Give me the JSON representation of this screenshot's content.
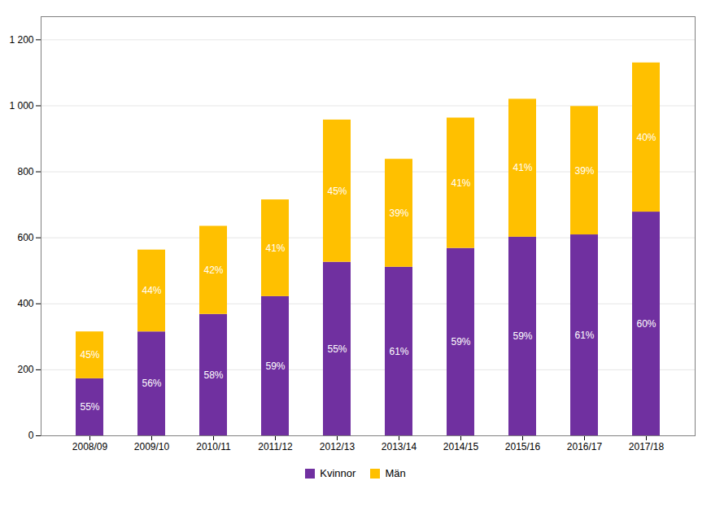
{
  "chart_data": {
    "type": "bar",
    "stacked": true,
    "categories": [
      "2008/09",
      "2009/10",
      "2010/11",
      "2011/12",
      "2012/13",
      "2013/14",
      "2014/15",
      "2015/16",
      "2016/17",
      "2017/18"
    ],
    "series": [
      {
        "name": "Kvinnor",
        "color": "#7030A0",
        "values": [
          173,
          315,
          368,
          422,
          526,
          511,
          568,
          602,
          609,
          678
        ],
        "share_labels": [
          "55%",
          "56%",
          "58%",
          "59%",
          "55%",
          "61%",
          "59%",
          "59%",
          "61%",
          "60%"
        ]
      },
      {
        "name": "Män",
        "color": "#FFC000",
        "values": [
          142,
          248,
          267,
          293,
          431,
          327,
          395,
          418,
          389,
          452
        ],
        "share_labels": [
          "45%",
          "44%",
          "42%",
          "41%",
          "45%",
          "39%",
          "41%",
          "41%",
          "39%",
          "40%"
        ]
      }
    ],
    "ylim": [
      0,
      1270
    ],
    "yticks": [
      0,
      200,
      400,
      600,
      800,
      {
        "value": 1000,
        "label": "1 000"
      },
      {
        "value": 1200,
        "label": "1 200"
      }
    ],
    "grid": true,
    "legend": "bottom"
  }
}
